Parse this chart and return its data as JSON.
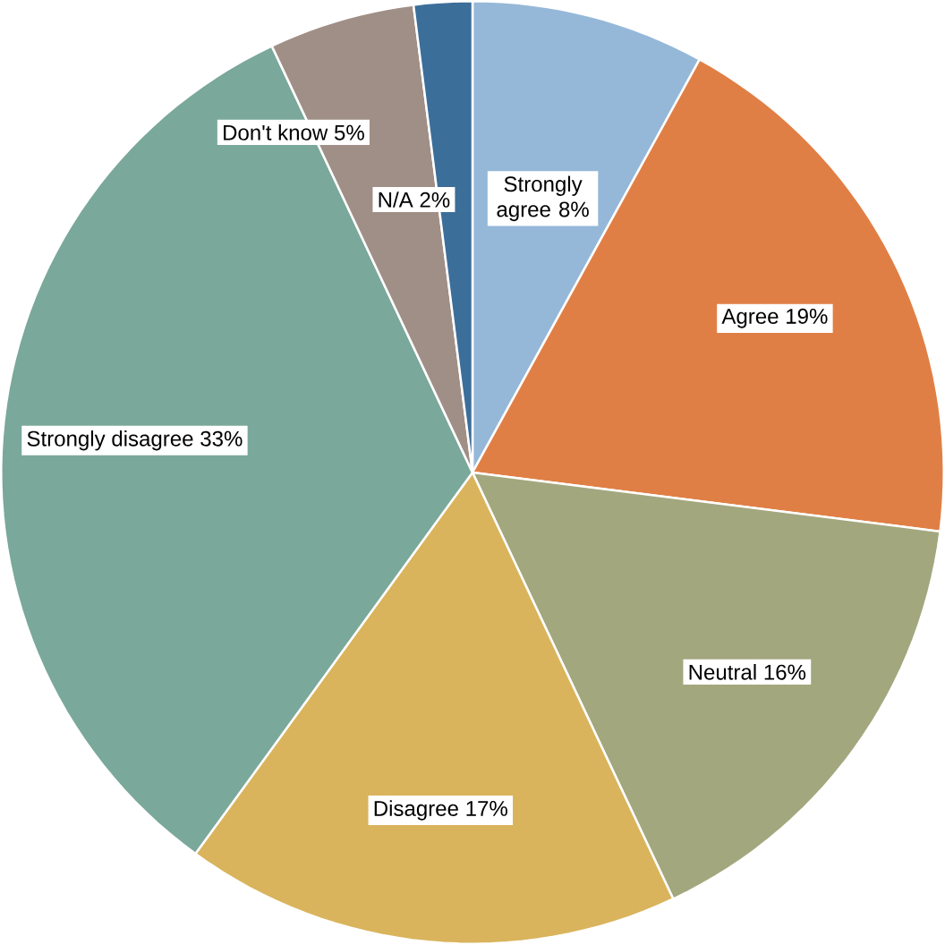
{
  "chart_data": {
    "type": "pie",
    "categories": [
      "Strongly agree",
      "Agree",
      "Neutral",
      "Disagree",
      "Strongly disagree",
      "Don't know",
      "N/A"
    ],
    "values": [
      8,
      19,
      16,
      17,
      33,
      5,
      2
    ],
    "value_labels": [
      "8%",
      "19%",
      "16%",
      "17%",
      "33%",
      "5%",
      "2%"
    ],
    "colors": [
      "#95b8d8",
      "#e07f45",
      "#a3a77e",
      "#d9b45c",
      "#7aa89a",
      "#a08f86",
      "#3c6e9a"
    ]
  }
}
